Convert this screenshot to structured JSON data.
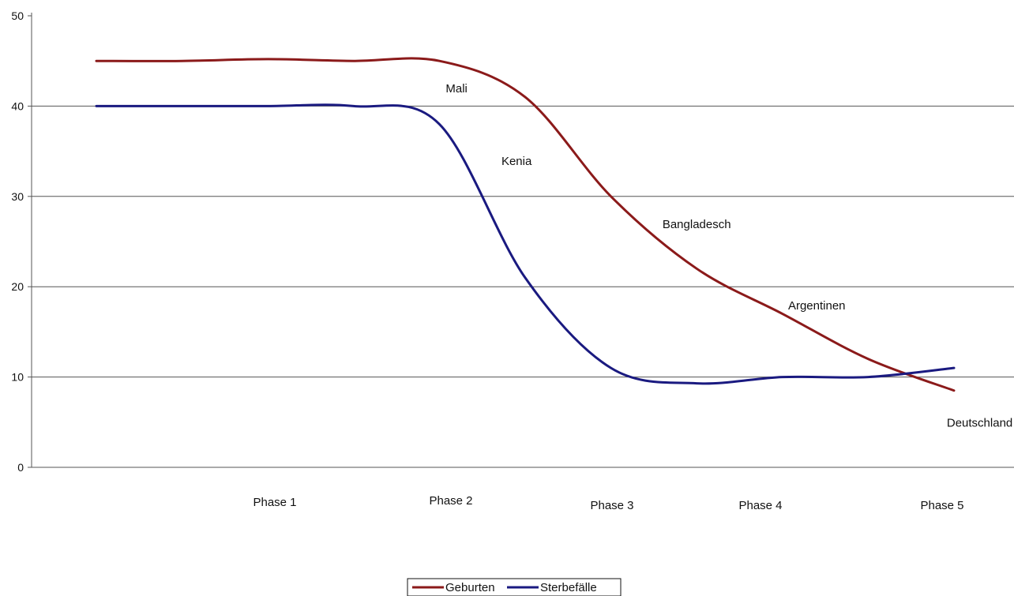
{
  "chart_data": {
    "type": "line",
    "title": "",
    "xlabel": "",
    "ylabel": "",
    "ylim": [
      0,
      50
    ],
    "y_ticks": [
      0,
      10,
      20,
      30,
      40,
      50
    ],
    "grid": true,
    "legend_position": "bottom",
    "categories": [
      "Phase 1",
      "Phase 2",
      "Phase 3",
      "Phase 4",
      "Phase 5"
    ],
    "x": [
      0,
      0.5,
      1,
      1.5,
      2,
      2.5,
      3,
      3.5,
      4,
      4.5,
      5
    ],
    "series": [
      {
        "name": "Geburten",
        "color": "#8b1a1a",
        "values": [
          45,
          45,
          45.2,
          45,
          45,
          41,
          30,
          22,
          17,
          12,
          8.5
        ]
      },
      {
        "name": "Sterbefälle",
        "color": "#1a1a80",
        "values": [
          40,
          40,
          40,
          40,
          38,
          21,
          11,
          9.3,
          10,
          10,
          11
        ]
      }
    ],
    "annotations": [
      {
        "text": "Mali",
        "x": 2.1,
        "y": 41.5
      },
      {
        "text": "Kenia",
        "x": 2.45,
        "y": 33.5
      },
      {
        "text": "Bangladesch",
        "x": 3.5,
        "y": 26.5
      },
      {
        "text": "Argentinen",
        "x": 4.2,
        "y": 17.5
      },
      {
        "text": "Deutschland",
        "x": 5.15,
        "y": 4.5
      }
    ]
  }
}
